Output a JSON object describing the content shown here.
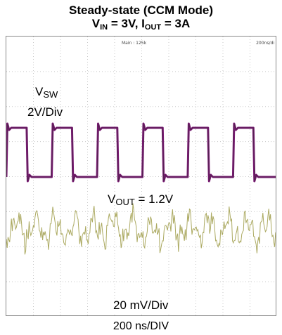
{
  "title": {
    "line1": "Steady-state (CCM Mode)",
    "vin_prefix": "V",
    "vin_sub": "IN",
    "vin_value": " = 3V, I",
    "iout_sub": "OUT",
    "iout_value": " = 3A"
  },
  "scope": {
    "timebase_readout": "200ns/di",
    "memory_readout": "Main : 125k"
  },
  "labels": {
    "vsw_main": "V",
    "vsw_sub": "SW",
    "vsw_scale": "2V/Div",
    "vout_main": "V",
    "vout_sub": "OUT",
    "vout_value": " = 1.2V",
    "vout_scale": "20 mV/Div",
    "x_axis": "200 ns/DIV"
  },
  "colors": {
    "vsw_trace": "#7a1a73",
    "vout_trace": "#a8a55a",
    "grid": "#c8c8c8"
  },
  "chart_data": {
    "type": "line",
    "title": "Steady-state (CCM Mode)",
    "subtitle": "VIN = 3V, IOUT = 3A",
    "x_units": "ns",
    "xlabel": "200 ns/DIV",
    "x_range": [
      0,
      2000
    ],
    "grid": true,
    "series": [
      {
        "name": "VSW",
        "scale": "2V/Div",
        "waveform": "square",
        "period_ns": 333,
        "duty_cycle": 0.45,
        "high_v": 3.0,
        "low_v": 0.0,
        "rising_edges_ns": [
          0,
          335,
          670,
          1005,
          1340,
          1675
        ],
        "falling_edges_ns": [
          150,
          485,
          820,
          1155,
          1490,
          1825
        ]
      },
      {
        "name": "VOUT = 1.2V",
        "scale": "20 mV/Div",
        "dc_level_v": 1.2,
        "waveform": "noise",
        "peak_to_peak_mv": 40
      }
    ]
  }
}
